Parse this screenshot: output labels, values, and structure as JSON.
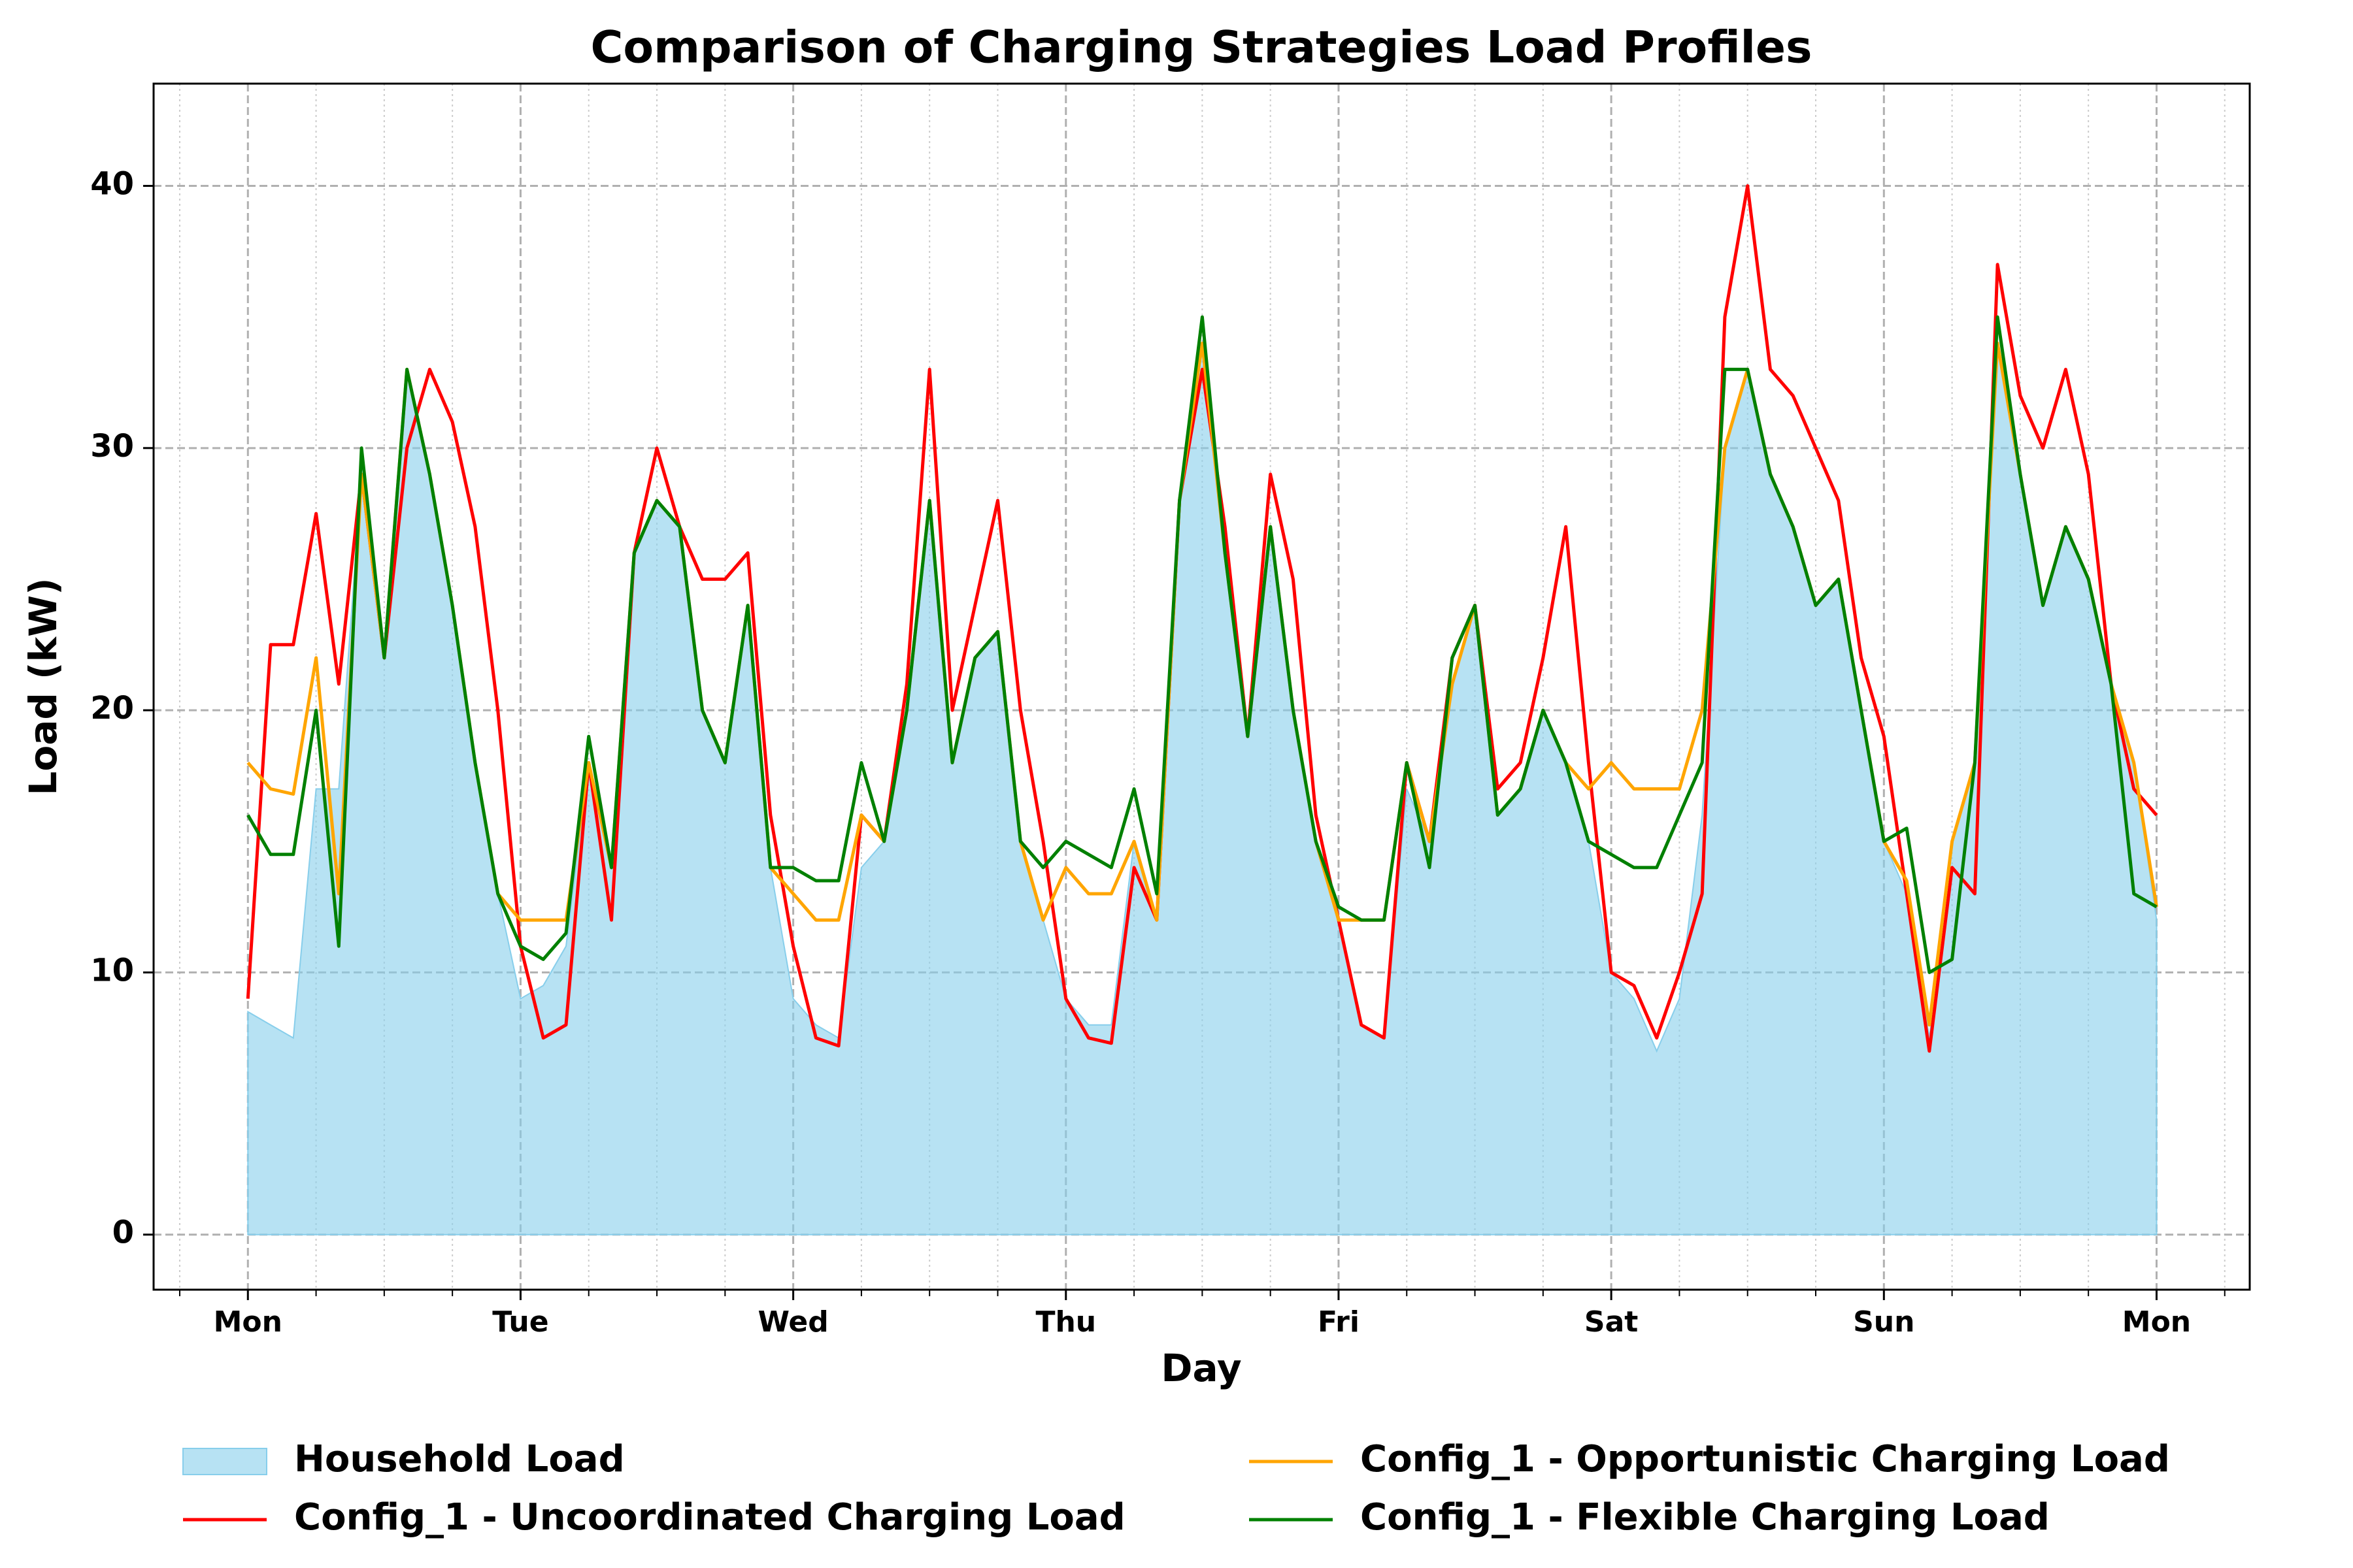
{
  "chart_data": {
    "type": "line",
    "title": "Comparison of Charging Strategies Load Profiles",
    "xlabel": "Day",
    "ylabel": "Load (kW)",
    "x": [
      0,
      2,
      4,
      6,
      8,
      10,
      12,
      14,
      16,
      18,
      20,
      22,
      24,
      26,
      28,
      30,
      32,
      34,
      36,
      38,
      40,
      42,
      44,
      46,
      48,
      50,
      52,
      54,
      56,
      58,
      60,
      62,
      64,
      66,
      68,
      70,
      72,
      74,
      76,
      78,
      80,
      82,
      84,
      86,
      88,
      90,
      92,
      94,
      96,
      98,
      100,
      102,
      104,
      106,
      108,
      110,
      112,
      114,
      116,
      118,
      120,
      122,
      124,
      126,
      128,
      130,
      132,
      134,
      136,
      138,
      140,
      142,
      144,
      146,
      148,
      150,
      152,
      154,
      156,
      158,
      160,
      162,
      164,
      166,
      168
    ],
    "series": [
      {
        "name": "Household Load",
        "style": "area",
        "color": "#87ceeb",
        "alpha": 0.6,
        "values": [
          8.5,
          8,
          7.5,
          17,
          17,
          29,
          22,
          33,
          29,
          24,
          18,
          13,
          9,
          9.5,
          11,
          18,
          14,
          26,
          28,
          27,
          20,
          18,
          24,
          14,
          9,
          8,
          7.5,
          14,
          15,
          20,
          28,
          18,
          22,
          23,
          15,
          12,
          9,
          8,
          8,
          15,
          12,
          28,
          34,
          26,
          19,
          27,
          20,
          15,
          12,
          8,
          7.5,
          17,
          15,
          21,
          24,
          16,
          17,
          20,
          18,
          15,
          10,
          9,
          7,
          9,
          16,
          30,
          33,
          29,
          27,
          24,
          25,
          20,
          15,
          13,
          7.5,
          15,
          18,
          34,
          29,
          24,
          27,
          25,
          21,
          18,
          12
        ]
      },
      {
        "name": "Config_1 - Uncoordinated Charging Load",
        "style": "line",
        "color": "#ff0000",
        "values": [
          9,
          22.5,
          22.5,
          27.5,
          21,
          29,
          22,
          30,
          33,
          31,
          27,
          20,
          11,
          7.5,
          8,
          18,
          12,
          26,
          30,
          27,
          25,
          25,
          26,
          16,
          11,
          7.5,
          7.2,
          16,
          15,
          21,
          33,
          20,
          24,
          28,
          20,
          15,
          9,
          7.5,
          7.3,
          14,
          12,
          28,
          33,
          27,
          19,
          29,
          25,
          16,
          12,
          8,
          7.5,
          18,
          15,
          22,
          24,
          17,
          18,
          22,
          27,
          18,
          10,
          9.5,
          7.5,
          10,
          13,
          35,
          40,
          33,
          32,
          30,
          28,
          22,
          19,
          13,
          7,
          14,
          13,
          37,
          32,
          30,
          33,
          29,
          21,
          17,
          16
        ]
      },
      {
        "name": "Config_1 - Opportunistic Charging Load",
        "style": "line",
        "color": "#ffa500",
        "values": [
          18,
          17,
          16.8,
          22,
          13,
          29,
          22,
          33,
          29,
          24,
          18,
          13,
          12,
          12,
          12,
          18,
          14,
          26,
          28,
          27,
          20,
          18,
          24,
          14,
          13,
          12,
          12,
          16,
          15,
          20,
          28,
          18,
          22,
          23,
          15,
          12,
          14,
          13,
          13,
          15,
          12,
          28,
          34,
          26,
          19,
          27,
          20,
          15,
          12,
          12,
          12,
          18,
          15,
          21,
          24,
          16,
          17,
          20,
          18,
          17,
          18,
          17,
          17,
          17,
          20,
          30,
          33,
          29,
          27,
          24,
          25,
          20,
          15,
          13.5,
          8,
          15,
          18,
          34,
          29,
          24,
          27,
          25,
          21,
          18,
          12.5
        ]
      },
      {
        "name": "Config_1 - Flexible Charging Load",
        "style": "line",
        "color": "#008000",
        "values": [
          16,
          14.5,
          14.5,
          20,
          11,
          30,
          22,
          33,
          29,
          24,
          18,
          13,
          11,
          10.5,
          11.5,
          19,
          14,
          26,
          28,
          27,
          20,
          18,
          24,
          14,
          14,
          13.5,
          13.5,
          18,
          15,
          20,
          28,
          18,
          22,
          23,
          15,
          14,
          15,
          14.5,
          14,
          17,
          13,
          28,
          35,
          26,
          19,
          27,
          20,
          15,
          12.5,
          12,
          12,
          18,
          14,
          22,
          24,
          16,
          17,
          20,
          18,
          15,
          14.5,
          14,
          14,
          16,
          18,
          33,
          33,
          29,
          27,
          24,
          25,
          20,
          15,
          15.5,
          10,
          10.5,
          18,
          35,
          29,
          24,
          27,
          25,
          21,
          13,
          12.5
        ]
      }
    ],
    "xlim": [
      -8.3,
      176.2
    ],
    "xticks": [
      {
        "value": 0,
        "label": "Mon"
      },
      {
        "value": 24,
        "label": "Tue"
      },
      {
        "value": 48,
        "label": "Wed"
      },
      {
        "value": 72,
        "label": "Thu"
      },
      {
        "value": 96,
        "label": "Fri"
      },
      {
        "value": 120,
        "label": "Sat"
      },
      {
        "value": 144,
        "label": "Sun"
      },
      {
        "value": 168,
        "label": "Mon"
      }
    ],
    "xminorticks": [
      -6,
      6,
      12,
      18,
      30,
      36,
      42,
      54,
      60,
      66,
      78,
      84,
      90,
      102,
      108,
      114,
      126,
      132,
      138,
      150,
      156,
      162,
      174
    ],
    "ylim": [
      -2.1,
      43.9
    ],
    "yticks": [
      0,
      10,
      20,
      30,
      40
    ],
    "grid": true,
    "legend": "bottom"
  }
}
